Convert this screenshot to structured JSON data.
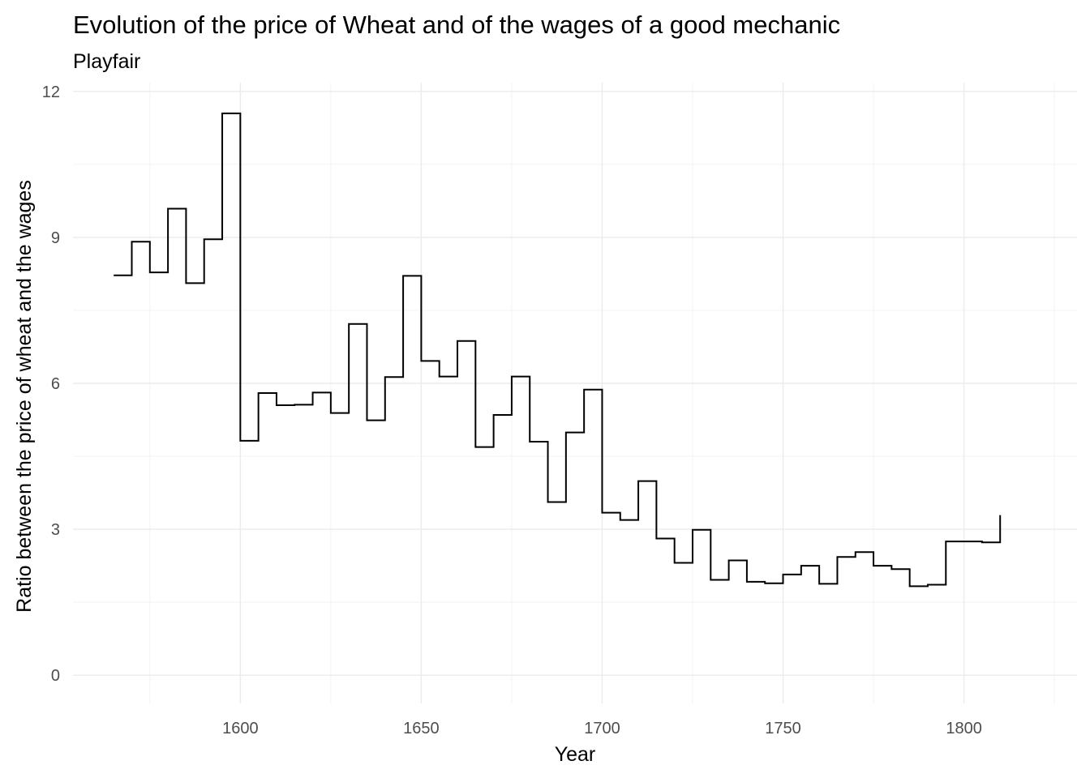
{
  "chart_data": {
    "type": "line",
    "title": "Evolution of the price of Wheat and of the wages of a good mechanic",
    "subtitle": "Playfair",
    "xlabel": "Year",
    "ylabel": "Ratio between the price of wheat and the wages",
    "step": "hv",
    "xlim": [
      1553.75,
      1831.25
    ],
    "ylim": [
      -0.58,
      12.18
    ],
    "x_ticks": [
      1600,
      1650,
      1700,
      1750,
      1800
    ],
    "x_tick_labels": [
      "1600",
      "1650",
      "1700",
      "1750",
      "1800"
    ],
    "y_ticks": [
      0,
      3,
      6,
      9,
      12
    ],
    "y_tick_labels": [
      "0",
      "3",
      "6",
      "9",
      "12"
    ],
    "grid": true,
    "legend": "none",
    "line_color": "#000000",
    "series": [
      {
        "x": [
          1565,
          1570,
          1575,
          1580,
          1585,
          1590,
          1595,
          1600,
          1605,
          1610,
          1615,
          1620,
          1625,
          1630,
          1635,
          1640,
          1645,
          1650,
          1655,
          1660,
          1665,
          1670,
          1675,
          1680,
          1685,
          1690,
          1695,
          1700,
          1705,
          1710,
          1715,
          1720,
          1725,
          1730,
          1735,
          1740,
          1745,
          1750,
          1755,
          1760,
          1765,
          1770,
          1775,
          1780,
          1785,
          1790,
          1795,
          1800,
          1805,
          1810
        ],
        "y": [
          8.22,
          8.91,
          8.28,
          9.59,
          8.06,
          8.96,
          11.55,
          4.82,
          5.8,
          5.55,
          5.56,
          5.81,
          5.39,
          7.22,
          5.24,
          6.13,
          8.21,
          6.46,
          6.14,
          6.87,
          4.69,
          5.35,
          6.14,
          4.8,
          3.56,
          4.99,
          5.87,
          3.34,
          3.19,
          3.99,
          2.81,
          2.31,
          2.99,
          1.96,
          2.36,
          1.92,
          1.89,
          2.07,
          2.25,
          1.88,
          2.43,
          2.53,
          2.25,
          2.18,
          1.83,
          1.86,
          2.75,
          2.75,
          2.73,
          3.29
        ]
      }
    ]
  }
}
